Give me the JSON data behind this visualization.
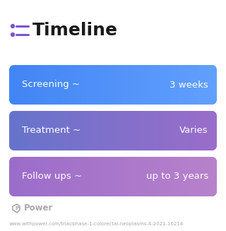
{
  "title": "Timeline",
  "title_fontsize": 18,
  "title_color": "#1a1a1a",
  "title_icon_color": "#7b52d4",
  "background_color": "#ffffff",
  "rows": [
    {
      "left_text": "Screening ~",
      "right_text": "3 weeks",
      "color_left": "#4285f4",
      "color_right": "#62a0ff"
    },
    {
      "left_text": "Treatment ~",
      "right_text": "Varies",
      "color_left": "#6674cc",
      "color_right": "#9b6dca"
    },
    {
      "left_text": "Follow ups ~",
      "right_text": "up to 3 years",
      "color_left": "#9b6dca",
      "color_right": "#b882cc"
    }
  ],
  "text_color": "#ffffff",
  "row_font_size": 9.5,
  "footer_text": "Power",
  "footer_url": "www.withpower.com/trial/phase-1-colorectal-neoplasms-4-2021-16214",
  "footer_color": "#aaaaaa",
  "footer_fontsize": 5.0
}
